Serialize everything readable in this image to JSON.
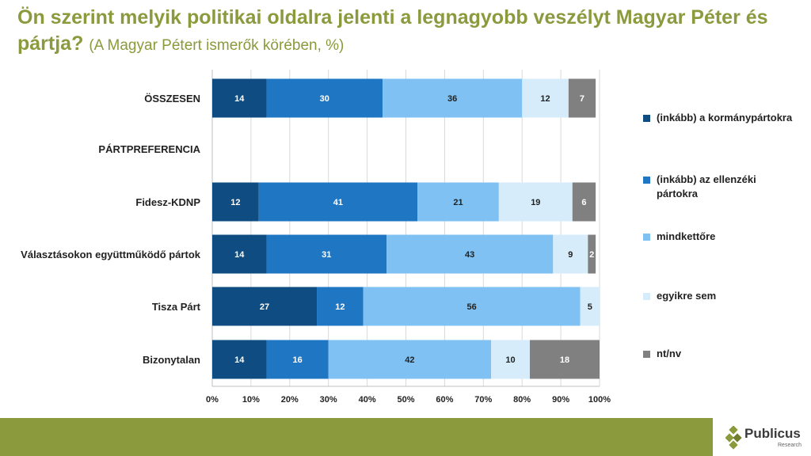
{
  "title": {
    "main": "Ön szerint melyik politikai oldalra jelenti a legnagyobb veszélyt Magyar Péter és pártja?",
    "subtitle": "(A Magyar Pétert ismerők körében, %)"
  },
  "chart_data": {
    "type": "bar",
    "orientation": "horizontal",
    "stacked": true,
    "categories": [
      "ÖSSZESEN",
      "PÁRTPREFERENCIA",
      "Fidesz-KDNP",
      "Választásokon együttműködő pártok",
      "Tisza Párt",
      "Bizonytalan"
    ],
    "series": [
      {
        "name": "(inkább) a kormánypártokra",
        "color": "#0f4c81",
        "values": [
          14,
          null,
          12,
          14,
          27,
          14
        ]
      },
      {
        "name": "(inkább) az ellenzéki pártokra",
        "color": "#1f77c4",
        "values": [
          30,
          null,
          41,
          31,
          12,
          16
        ]
      },
      {
        "name": "mindkettőre",
        "color": "#7ec1f2",
        "values": [
          36,
          null,
          21,
          43,
          56,
          42
        ]
      },
      {
        "name": "egyikre sem",
        "color": "#d6ecfb",
        "values": [
          12,
          null,
          19,
          9,
          5,
          10
        ]
      },
      {
        "name": "nt/nv",
        "color": "#808080",
        "values": [
          7,
          null,
          6,
          2,
          0,
          18
        ]
      }
    ],
    "xlim": [
      0,
      100
    ],
    "xticks": [
      "0%",
      "10%",
      "20%",
      "30%",
      "40%",
      "50%",
      "60%",
      "70%",
      "80%",
      "90%",
      "100%"
    ],
    "grid": true,
    "legend_position": "right"
  },
  "brand": {
    "name": "Publicus",
    "tagline": "Research",
    "accent": "#8a9a3c"
  }
}
